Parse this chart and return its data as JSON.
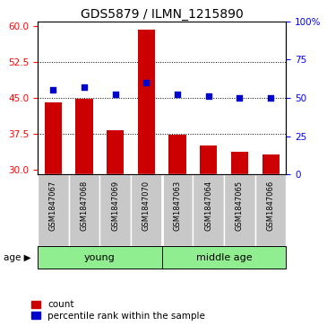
{
  "title": "GDS5879 / ILMN_1215890",
  "samples": [
    "GSM1847067",
    "GSM1847068",
    "GSM1847069",
    "GSM1847070",
    "GSM1847063",
    "GSM1847064",
    "GSM1847065",
    "GSM1847066"
  ],
  "counts": [
    44.0,
    44.8,
    38.2,
    59.3,
    37.2,
    35.0,
    33.8,
    33.2
  ],
  "percentiles": [
    55,
    57,
    52,
    60,
    52,
    51,
    50,
    50
  ],
  "groups": [
    {
      "label": "young",
      "start": 0,
      "end": 4,
      "color": "#90EE90"
    },
    {
      "label": "middle age",
      "start": 4,
      "end": 8,
      "color": "#90EE90"
    }
  ],
  "ylim_left": [
    29,
    61
  ],
  "ylim_right": [
    0,
    100
  ],
  "yticks_left": [
    30,
    37.5,
    45,
    52.5,
    60
  ],
  "yticks_right": [
    0,
    25,
    50,
    75,
    100
  ],
  "bar_color": "#CC0000",
  "dot_color": "#0000CC",
  "bar_width": 0.55,
  "legend_items": [
    {
      "color": "#CC0000",
      "label": "count"
    },
    {
      "color": "#0000CC",
      "label": "percentile rank within the sample"
    }
  ],
  "age_label": "age"
}
